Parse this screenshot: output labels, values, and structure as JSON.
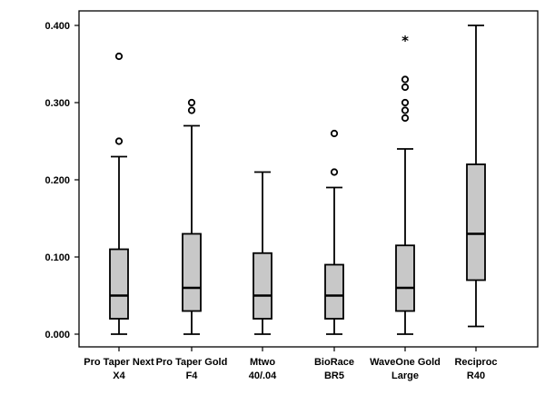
{
  "chart_data": {
    "type": "boxplot",
    "ylim": [
      0,
      0.4
    ],
    "yticks": [
      "0.000",
      "0.100",
      "0.200",
      "0.300",
      "0.400"
    ],
    "grid": false,
    "colors": {
      "box_fill": "#c8c8c8",
      "stroke": "#000000",
      "frame": "#000000"
    },
    "categories": [
      {
        "label_lines": [
          "Pro Taper Next",
          "X4"
        ],
        "min": 0.0,
        "q1": 0.02,
        "median": 0.05,
        "q3": 0.11,
        "max": 0.23,
        "outliers": [
          0.25,
          0.36
        ],
        "extremes": []
      },
      {
        "label_lines": [
          "Pro Taper Gold",
          "F4"
        ],
        "min": 0.0,
        "q1": 0.03,
        "median": 0.06,
        "q3": 0.13,
        "max": 0.27,
        "outliers": [
          0.29,
          0.3
        ],
        "extremes": []
      },
      {
        "label_lines": [
          "Mtwo",
          "40/.04"
        ],
        "min": 0.0,
        "q1": 0.02,
        "median": 0.05,
        "q3": 0.105,
        "max": 0.21,
        "outliers": [],
        "extremes": []
      },
      {
        "label_lines": [
          "BioRace",
          "BR5"
        ],
        "min": 0.0,
        "q1": 0.02,
        "median": 0.05,
        "q3": 0.09,
        "max": 0.19,
        "outliers": [
          0.21,
          0.26
        ],
        "extremes": []
      },
      {
        "label_lines": [
          "WaveOne Gold",
          "Large"
        ],
        "min": 0.0,
        "q1": 0.03,
        "median": 0.06,
        "q3": 0.115,
        "max": 0.24,
        "outliers": [
          0.28,
          0.29,
          0.3,
          0.32,
          0.33
        ],
        "extremes": [
          0.38
        ]
      },
      {
        "label_lines": [
          "Reciproc",
          "R40"
        ],
        "min": 0.01,
        "q1": 0.07,
        "median": 0.13,
        "q3": 0.22,
        "max": 0.4,
        "outliers": [],
        "extremes": []
      }
    ]
  }
}
